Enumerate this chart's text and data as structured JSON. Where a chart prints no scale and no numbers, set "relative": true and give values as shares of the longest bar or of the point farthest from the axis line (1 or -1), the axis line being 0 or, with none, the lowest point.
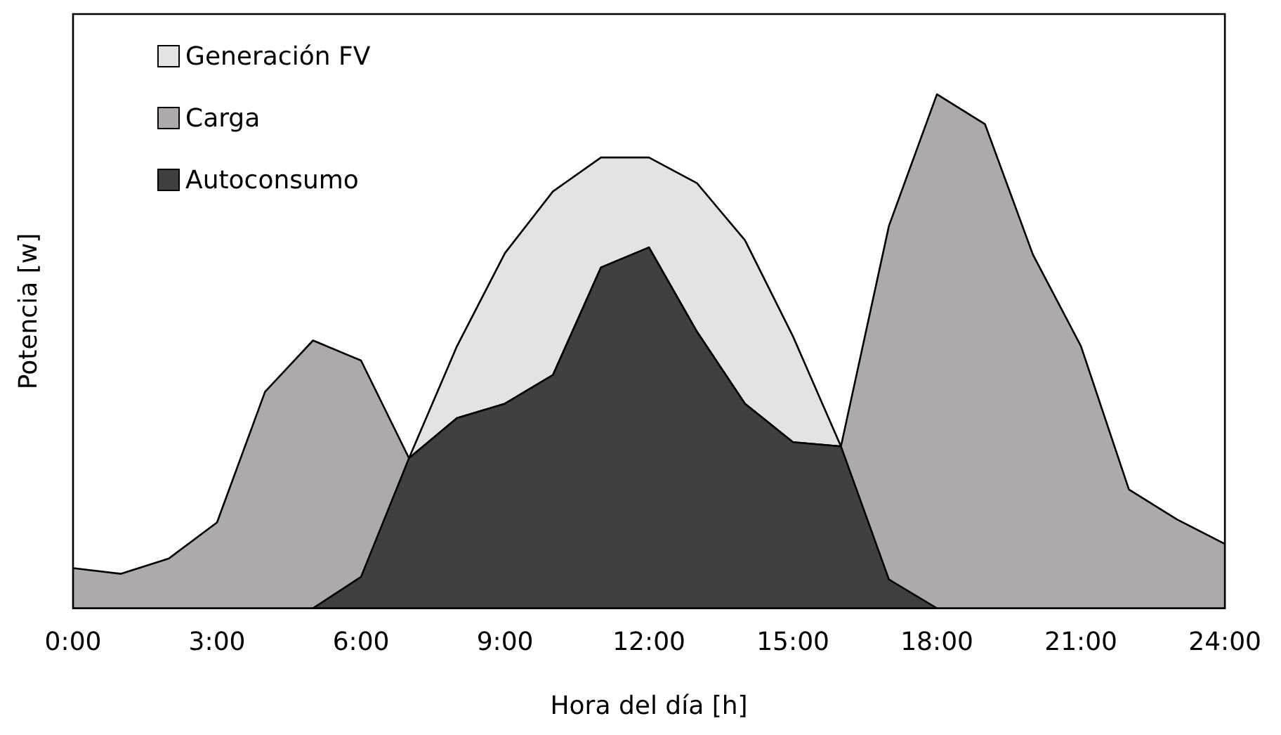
{
  "chart_data": {
    "type": "area",
    "relative": true,
    "xlabel": "Hora del día [h]",
    "ylabel": "Potencia [w]",
    "xlim": [
      0,
      24
    ],
    "xticks": [
      {
        "value": 0,
        "label": "0:00"
      },
      {
        "value": 3,
        "label": "3:00"
      },
      {
        "value": 6,
        "label": "6:00"
      },
      {
        "value": 9,
        "label": "9:00"
      },
      {
        "value": 12,
        "label": "12:00"
      },
      {
        "value": 15,
        "label": "15:00"
      },
      {
        "value": 18,
        "label": "18:00"
      },
      {
        "value": 21,
        "label": "21:00"
      },
      {
        "value": 24,
        "label": "24:00"
      }
    ],
    "legend": "top left",
    "grid": false,
    "series": [
      {
        "name": "Generación FV",
        "color": "#e3e3e3",
        "x": [
          5,
          6,
          7,
          8,
          9,
          10,
          11,
          12,
          13,
          14,
          15,
          16,
          17,
          18
        ],
        "values": [
          0,
          0.061,
          0.292,
          0.51,
          0.691,
          0.811,
          0.877,
          0.877,
          0.827,
          0.716,
          0.529,
          0.315,
          0.056,
          0
        ]
      },
      {
        "name": "Carga",
        "color": "#aeaaaa",
        "x": [
          0,
          1,
          2,
          3,
          4,
          5,
          6,
          7,
          8,
          9,
          10,
          11,
          12,
          13,
          14,
          15,
          16,
          17,
          18,
          19,
          20,
          21,
          22,
          23,
          24
        ],
        "values": [
          0.078,
          0.067,
          0.097,
          0.167,
          0.421,
          0.521,
          0.482,
          0.292,
          0.37,
          0.398,
          0.454,
          0.663,
          0.702,
          0.538,
          0.398,
          0.323,
          0.315,
          0.744,
          1,
          0.942,
          0.688,
          0.51,
          0.231,
          0.173,
          0.125
        ]
      },
      {
        "name": "Autoconsumo",
        "color": "#404040",
        "x": [
          5,
          6,
          7,
          8,
          9,
          10,
          11,
          12,
          13,
          14,
          15,
          16,
          17,
          18
        ],
        "values": [
          0,
          0.061,
          0.292,
          0.37,
          0.398,
          0.454,
          0.663,
          0.702,
          0.538,
          0.398,
          0.323,
          0.315,
          0.056,
          0
        ]
      }
    ]
  }
}
